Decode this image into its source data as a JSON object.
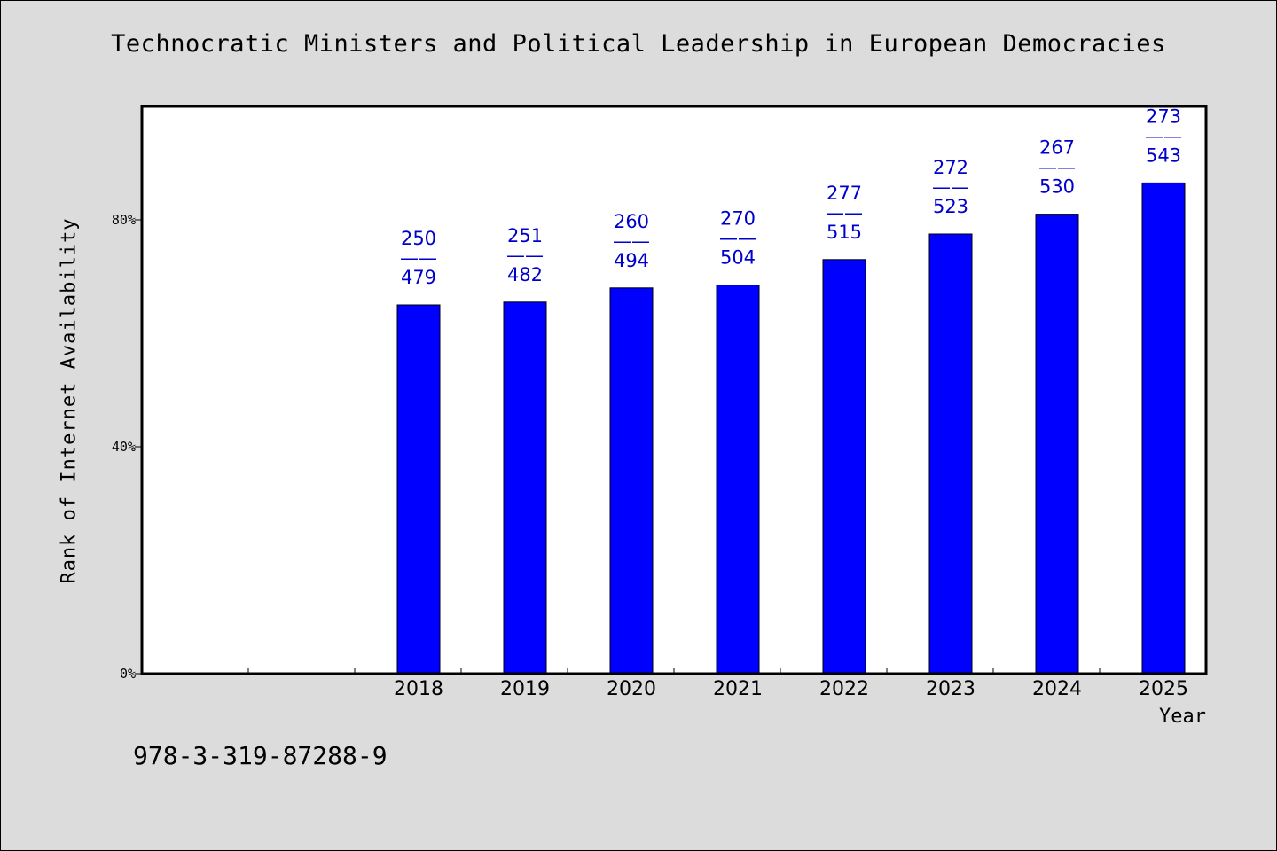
{
  "chart_data": {
    "type": "bar",
    "title": "Technocratic Ministers and Political Leadership in European Democracies",
    "xlabel": "Year",
    "ylabel": "Rank of Internet Availability",
    "ylim": [
      0,
      100
    ],
    "yticks": [
      0,
      40,
      80
    ],
    "ytick_labels": [
      "0%",
      "40%",
      "80%"
    ],
    "categories": [
      "",
      "",
      "2018",
      "2019",
      "2020",
      "2021",
      "2022",
      "2023",
      "2024",
      "2025"
    ],
    "values": [
      null,
      null,
      65.0,
      65.5,
      68.0,
      68.5,
      73.0,
      77.5,
      81.0,
      86.5
    ],
    "data_labels": [
      null,
      null,
      [
        "250",
        "——",
        "479"
      ],
      [
        "251",
        "——",
        "482"
      ],
      [
        "260",
        "——",
        "494"
      ],
      [
        "270",
        "——",
        "504"
      ],
      [
        "277",
        "——",
        "515"
      ],
      [
        "272",
        "——",
        "523"
      ],
      [
        "267",
        "——",
        "530"
      ],
      [
        "273",
        "——",
        "543"
      ]
    ],
    "bar_color": "#0000ff",
    "label_color": "#0000cc",
    "grid": false,
    "legend": "none"
  },
  "footer": {
    "isbn": "978-3-319-87288-9"
  }
}
